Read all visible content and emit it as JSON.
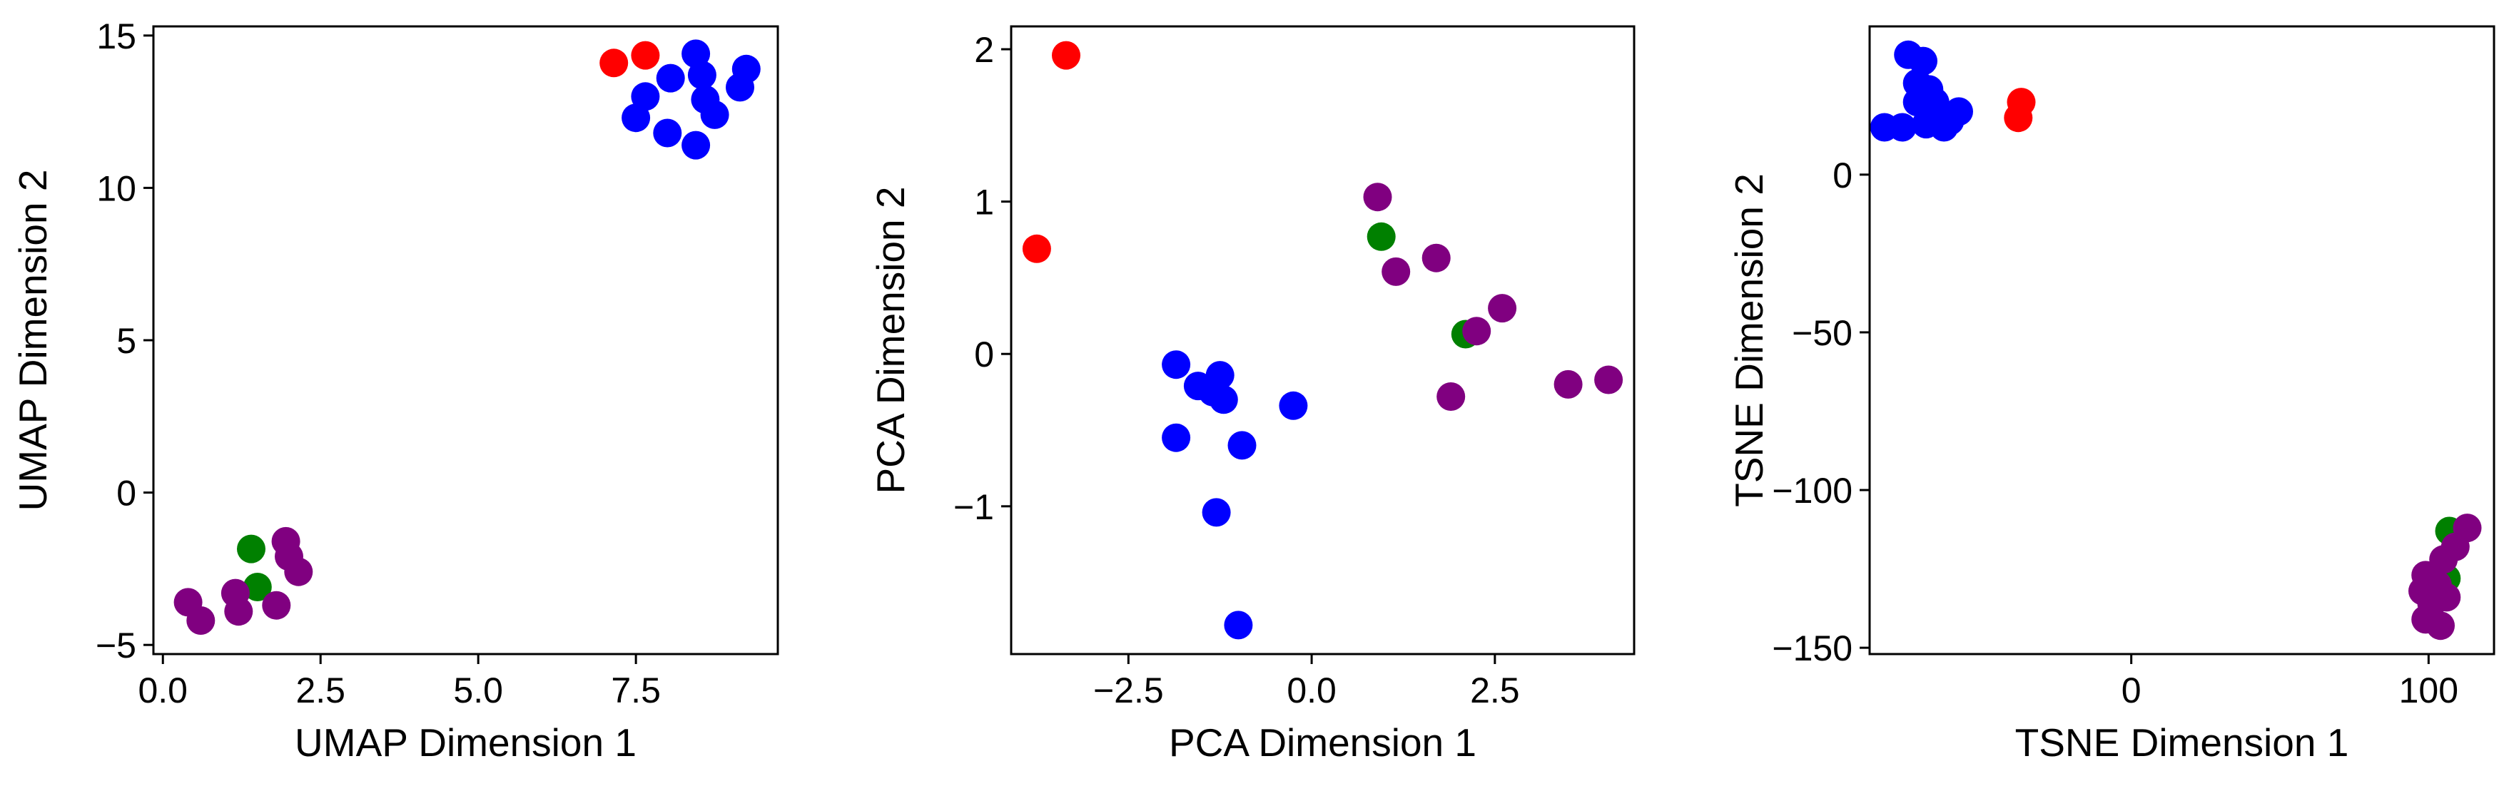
{
  "chart_data": [
    {
      "type": "scatter",
      "xlabel": "UMAP Dimension 1",
      "ylabel": "UMAP Dimension 2",
      "xlim": [
        -0.15,
        9.75
      ],
      "ylim": [
        -5.3,
        15.3
      ],
      "xticks": [
        0.0,
        2.5,
        5.0,
        7.5
      ],
      "xtick_labels": [
        "0.0",
        "2.5",
        "5.0",
        "7.5"
      ],
      "yticks": [
        -5,
        0,
        5,
        10,
        15
      ],
      "ytick_labels": [
        "−5",
        "0",
        "5",
        "10",
        "15"
      ],
      "grid": false,
      "series": [
        {
          "color": "#0000ff",
          "points": [
            [
              8.45,
              14.4
            ],
            [
              8.55,
              13.7
            ],
            [
              9.25,
              13.9
            ],
            [
              7.65,
              13.0
            ],
            [
              8.6,
              12.9
            ],
            [
              9.15,
              13.3
            ],
            [
              7.5,
              12.3
            ],
            [
              8.75,
              12.4
            ],
            [
              8.0,
              11.8
            ],
            [
              8.45,
              11.4
            ],
            [
              8.05,
              13.6
            ]
          ]
        },
        {
          "color": "#ff0000",
          "points": [
            [
              7.15,
              14.1
            ],
            [
              7.65,
              14.35
            ]
          ]
        },
        {
          "color": "#008000",
          "points": [
            [
              1.4,
              -1.85
            ],
            [
              1.5,
              -3.1
            ]
          ]
        },
        {
          "color": "#800080",
          "points": [
            [
              1.95,
              -1.6
            ],
            [
              2.0,
              -2.1
            ],
            [
              2.15,
              -2.6
            ],
            [
              1.15,
              -3.3
            ],
            [
              0.4,
              -3.6
            ],
            [
              1.2,
              -3.9
            ],
            [
              1.8,
              -3.7
            ],
            [
              0.6,
              -4.2
            ]
          ]
        }
      ]
    },
    {
      "type": "scatter",
      "xlabel": "PCA Dimension 1",
      "ylabel": "PCA Dimension 2",
      "xlim": [
        -4.1,
        4.4
      ],
      "ylim": [
        -1.97,
        2.15
      ],
      "xticks": [
        -2.5,
        0.0,
        2.5
      ],
      "xtick_labels": [
        "−2.5",
        "0.0",
        "2.5"
      ],
      "yticks": [
        -1,
        0,
        1,
        2
      ],
      "ytick_labels": [
        "−1",
        "0",
        "1",
        "2"
      ],
      "grid": false,
      "series": [
        {
          "color": "#ff0000",
          "points": [
            [
              -3.35,
              1.96
            ],
            [
              -3.75,
              0.69
            ]
          ]
        },
        {
          "color": "#0000ff",
          "points": [
            [
              -1.85,
              -0.07
            ],
            [
              -1.55,
              -0.21
            ],
            [
              -1.25,
              -0.14
            ],
            [
              -1.35,
              -0.25
            ],
            [
              -1.2,
              -0.3
            ],
            [
              -0.25,
              -0.34
            ],
            [
              -1.85,
              -0.55
            ],
            [
              -0.95,
              -0.6
            ],
            [
              -1.3,
              -1.04
            ],
            [
              -1.0,
              -1.78
            ]
          ]
        },
        {
          "color": "#008000",
          "points": [
            [
              0.95,
              0.77
            ],
            [
              2.1,
              0.13
            ]
          ]
        },
        {
          "color": "#800080",
          "points": [
            [
              0.9,
              1.03
            ],
            [
              1.15,
              0.54
            ],
            [
              1.7,
              0.63
            ],
            [
              2.6,
              0.3
            ],
            [
              2.25,
              0.15
            ],
            [
              1.9,
              -0.28
            ],
            [
              3.5,
              -0.2
            ],
            [
              4.05,
              -0.17
            ]
          ]
        }
      ]
    },
    {
      "type": "scatter",
      "xlabel": "TSNE Dimension 1",
      "ylabel": "TSNE Dimension 2",
      "xlim": [
        -88,
        122
      ],
      "ylim": [
        -152,
        47
      ],
      "xticks": [
        0,
        100
      ],
      "xtick_labels": [
        "0",
        "100"
      ],
      "yticks": [
        -150,
        -100,
        -50,
        0
      ],
      "ytick_labels": [
        "−150",
        "−100",
        "−50",
        "0"
      ],
      "grid": false,
      "series": [
        {
          "color": "#0000ff",
          "points": [
            [
              -75,
              38
            ],
            [
              -70,
              36
            ],
            [
              -72,
              29
            ],
            [
              -68,
              27
            ],
            [
              -72,
              23
            ],
            [
              -66,
              23
            ],
            [
              -65,
              20
            ],
            [
              -58,
              20
            ],
            [
              -61,
              17
            ],
            [
              -69,
              16
            ],
            [
              -77,
              15
            ],
            [
              -83,
              15
            ],
            [
              -63,
              15
            ]
          ]
        },
        {
          "color": "#ff0000",
          "points": [
            [
              -37,
              23
            ],
            [
              -38,
              18
            ]
          ]
        },
        {
          "color": "#008000",
          "points": [
            [
              107,
              -113
            ],
            [
              106,
              -128
            ]
          ]
        },
        {
          "color": "#800080",
          "points": [
            [
              113,
              -112
            ],
            [
              109,
              -118
            ],
            [
              105,
              -122
            ],
            [
              99,
              -127
            ],
            [
              103,
              -130
            ],
            [
              98,
              -132
            ],
            [
              101,
              -136
            ],
            [
              99,
              -141
            ],
            [
              104,
              -143
            ],
            [
              106,
              -134
            ]
          ]
        }
      ]
    }
  ]
}
